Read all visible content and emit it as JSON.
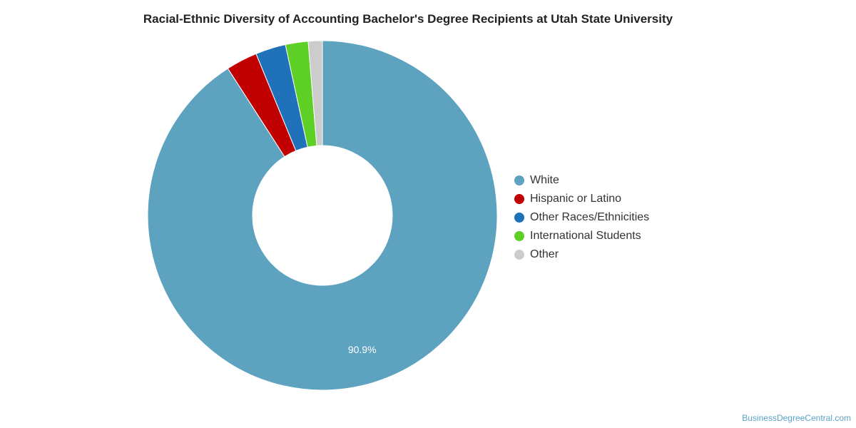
{
  "chart_data": {
    "type": "pie",
    "variant": "donut",
    "title": "Racial-Ethnic Diversity of Accounting Bachelor's Degree Recipients at Utah State University",
    "legend_position": "right",
    "slices": [
      {
        "name": "White",
        "value": 90.9,
        "color": "#5da2bf",
        "label": "90.9%"
      },
      {
        "name": "Hispanic or Latino",
        "value": 2.9,
        "color": "#c00000",
        "label": ""
      },
      {
        "name": "Other Races/Ethnicities",
        "value": 2.8,
        "color": "#1f72b9",
        "label": ""
      },
      {
        "name": "International Students",
        "value": 2.1,
        "color": "#5ecf24",
        "label": ""
      },
      {
        "name": "Other",
        "value": 1.3,
        "color": "#cccccc",
        "label": ""
      }
    ]
  },
  "footer": {
    "watermark": "BusinessDegreeCentral.com"
  }
}
